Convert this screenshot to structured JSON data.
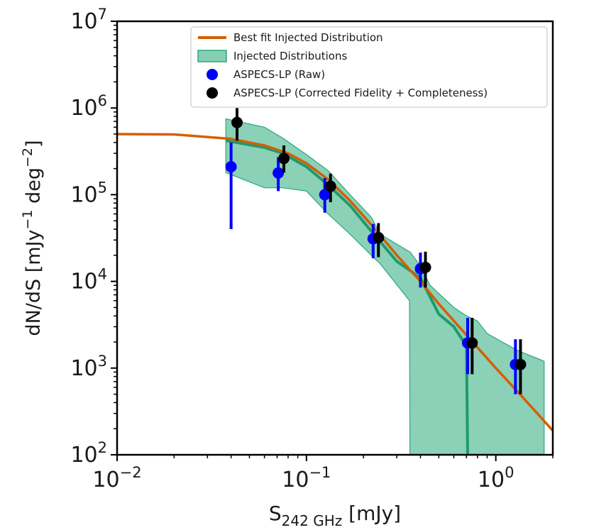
{
  "chart_data": {
    "type": "scatter",
    "xscale": "log",
    "yscale": "log",
    "xlim": [
      0.01,
      2.0
    ],
    "ylim": [
      100,
      10000000
    ],
    "xlabel_main": "S",
    "xlabel_sub": "242 GHz",
    "xlabel_unit": "[mJy]",
    "ylabel_main": "dN/dS [mJy",
    "ylabel_exp1": "−1",
    "ylabel_mid": " deg",
    "ylabel_exp2": "−2",
    "ylabel_end": "]",
    "x_ticks": [
      {
        "value": 0.01,
        "base": "10",
        "exp": "−2"
      },
      {
        "value": 0.1,
        "base": "10",
        "exp": "−1"
      },
      {
        "value": 1,
        "base": "10",
        "exp": "0"
      }
    ],
    "y_ticks": [
      {
        "value": 100,
        "base": "10",
        "exp": "2"
      },
      {
        "value": 1000,
        "base": "10",
        "exp": "3"
      },
      {
        "value": 10000,
        "base": "10",
        "exp": "4"
      },
      {
        "value": 100000,
        "base": "10",
        "exp": "5"
      },
      {
        "value": 1000000,
        "base": "10",
        "exp": "6"
      },
      {
        "value": 10000000,
        "base": "10",
        "exp": "7"
      }
    ],
    "legend": {
      "position": "upper-right",
      "entries": [
        {
          "label": "Best fit Injected Distribution",
          "kind": "line",
          "color": "#d55e00"
        },
        {
          "label": "Injected Distributions",
          "kind": "band",
          "color": "#5dbf9c",
          "edge": "#2ca87a"
        },
        {
          "label": "ASPECS-LP (Raw)",
          "kind": "point",
          "color": "#0000ff"
        },
        {
          "label": "ASPECS-LP (Corrected Fidelity + Completeness)",
          "kind": "point",
          "color": "#000000"
        }
      ]
    },
    "best_fit": {
      "name": "Best fit Injected Distribution",
      "color": "#d55e00",
      "x": [
        0.01,
        0.02,
        0.04,
        0.06,
        0.08,
        0.1,
        0.13,
        0.17,
        0.22,
        0.3,
        0.4,
        0.5,
        0.7,
        1.0,
        1.4,
        2.0
      ],
      "y": [
        500000,
        495000,
        440000,
        370000,
        300000,
        230000,
        150000,
        85000,
        45000,
        20000,
        10000,
        5500,
        2400,
        1000,
        450,
        190
      ]
    },
    "band": {
      "name": "Injected Distributions",
      "color": "#5dbf9c",
      "edge_color": "#2ca87a",
      "x": [
        0.0375,
        0.06,
        0.075,
        0.1,
        0.13,
        0.17,
        0.22,
        0.245,
        0.35,
        0.352,
        0.4,
        0.45,
        0.6,
        0.7,
        0.8,
        0.9,
        1.3,
        1.8
      ],
      "upper": [
        750000,
        600000,
        450000,
        290000,
        190000,
        100000,
        55000,
        35000,
        22000,
        22000,
        15000,
        9000,
        5000,
        4000,
        3500,
        2500,
        1600,
        1200
      ],
      "lower": [
        180000,
        120000,
        120000,
        110000,
        60000,
        35000,
        20000,
        16000,
        6000,
        100,
        100,
        100,
        100,
        100,
        100,
        100,
        100,
        100
      ],
      "median_x": [
        0.0375,
        0.06,
        0.075,
        0.1,
        0.13,
        0.17,
        0.22,
        0.3,
        0.4,
        0.5,
        0.6,
        0.7,
        0.71
      ],
      "median_y": [
        420000,
        350000,
        300000,
        210000,
        130000,
        75000,
        38000,
        17000,
        11000,
        4200,
        3000,
        1800,
        100
      ]
    },
    "series": [
      {
        "name": "ASPECS-LP (Raw)",
        "color": "#0000ff",
        "points": [
          {
            "x": 0.04,
            "y": 210000,
            "ylo": 40000,
            "yhi": 400000
          },
          {
            "x": 0.071,
            "y": 178000,
            "ylo": 110000,
            "yhi": 270000
          },
          {
            "x": 0.125,
            "y": 100000,
            "ylo": 62000,
            "yhi": 155000
          },
          {
            "x": 0.225,
            "y": 31000,
            "ylo": 18500,
            "yhi": 46000
          },
          {
            "x": 0.4,
            "y": 14000,
            "ylo": 8500,
            "yhi": 21500
          },
          {
            "x": 0.71,
            "y": 1950,
            "ylo": 850,
            "yhi": 3800
          },
          {
            "x": 1.27,
            "y": 1100,
            "ylo": 500,
            "yhi": 2150
          }
        ]
      },
      {
        "name": "ASPECS-LP (Corrected Fidelity + Completeness)",
        "color": "#000000",
        "points": [
          {
            "x": 0.043,
            "y": 680000,
            "ylo": 420000,
            "yhi": 1000000
          },
          {
            "x": 0.076,
            "y": 262000,
            "ylo": 180000,
            "yhi": 370000
          },
          {
            "x": 0.134,
            "y": 125000,
            "ylo": 82000,
            "yhi": 175000
          },
          {
            "x": 0.24,
            "y": 32000,
            "ylo": 19000,
            "yhi": 47000
          },
          {
            "x": 0.425,
            "y": 14500,
            "ylo": 8500,
            "yhi": 22000
          },
          {
            "x": 0.75,
            "y": 1950,
            "ylo": 850,
            "yhi": 3800
          },
          {
            "x": 1.35,
            "y": 1100,
            "ylo": 500,
            "yhi": 2150
          }
        ]
      }
    ]
  }
}
